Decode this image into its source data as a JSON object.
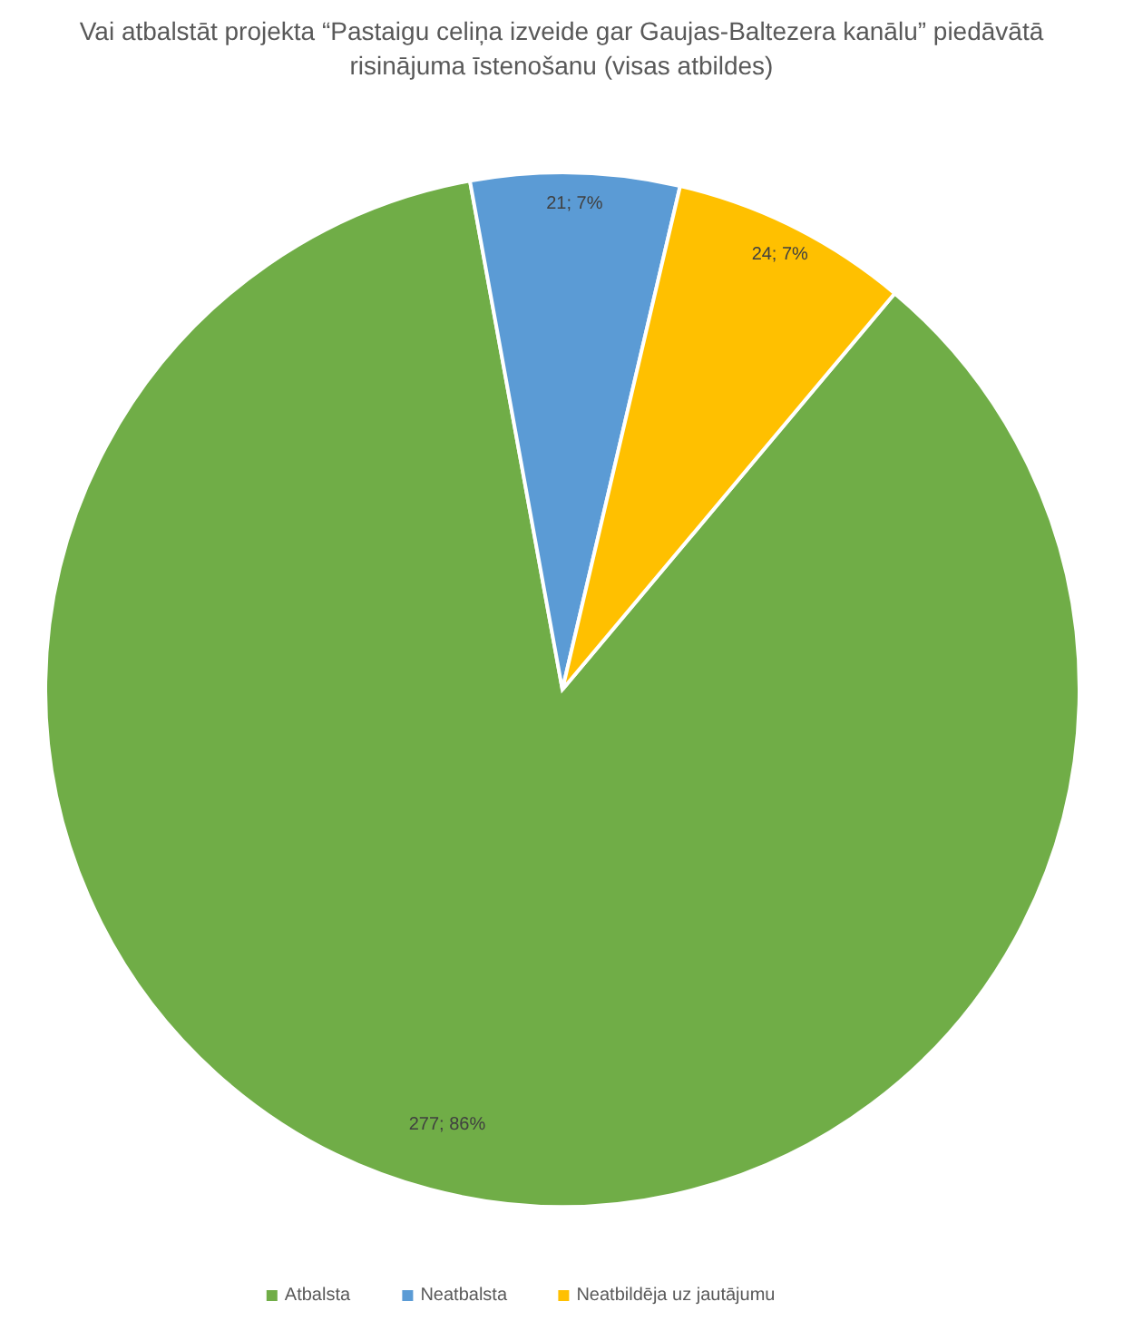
{
  "chart_data": {
    "type": "pie",
    "title": "Vai atbalstāt projekta “Pastaigu celiņa izveide gar Gaujas-Baltezera kanālu” piedāvātā risinājuma īstenošanu (visas atbildes)",
    "categories": [
      "Atbalsta",
      "Neatbalsta",
      "Neatbildēja uz jautājumu"
    ],
    "values": [
      277,
      21,
      24
    ],
    "colors": [
      "#70ad47",
      "#5b9bd5",
      "#ffc000"
    ],
    "value_labels": [
      "277; 86%",
      "21; 7%",
      "24; 7%"
    ],
    "legend": "bottom"
  }
}
